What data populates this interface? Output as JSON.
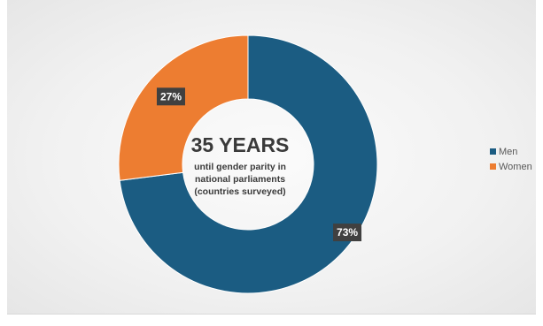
{
  "chart_data": {
    "type": "pie",
    "variant": "donut",
    "categories": [
      "Men",
      "Women"
    ],
    "values": [
      73,
      27
    ],
    "data_labels": [
      "73%",
      "27%"
    ],
    "colors": {
      "Men": "#1b5c82",
      "Women": "#ed7d31"
    },
    "center_text": {
      "headline": "35 YEARS",
      "lines": [
        "until gender parity in",
        "national parliaments",
        "(countries surveyed)"
      ]
    },
    "legend_position": "right",
    "legend": [
      "Men",
      "Women"
    ]
  }
}
